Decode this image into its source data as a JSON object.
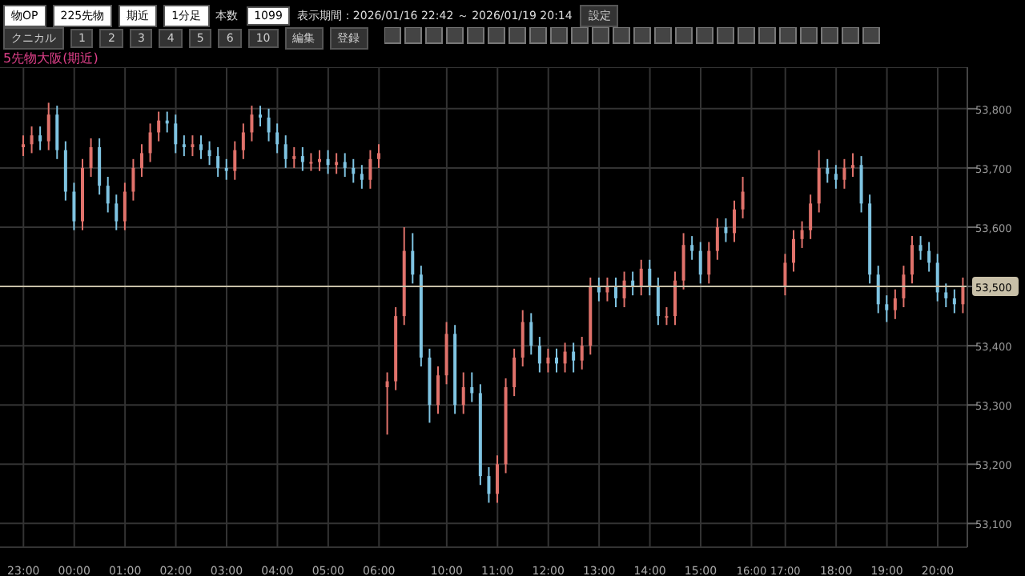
{
  "chart_data": {
    "type": "candlestick",
    "title": "5先物大阪(期近)",
    "annotations": [
      "物OP",
      "225先物",
      "期近",
      "1分足",
      "本数",
      "1099",
      "表示期間：2026/01/16 22:42 ～ 2026/01/19 20:14",
      "設定",
      "クニカル",
      "1",
      "2",
      "3",
      "4",
      "5",
      "6",
      "10",
      "編集",
      "登録"
    ],
    "categories": [
      "23:00",
      null,
      null,
      null,
      null,
      null,
      "00:00",
      null,
      null,
      null,
      null,
      null,
      "01:00",
      null,
      null,
      null,
      null,
      null,
      "02:00",
      null,
      null,
      null,
      null,
      null,
      "03:00",
      null,
      null,
      null,
      null,
      null,
      "04:00",
      null,
      null,
      null,
      null,
      null,
      "05:00",
      null,
      null,
      null,
      null,
      null,
      "06:00",
      null,
      null,
      null,
      null,
      null,
      null,
      null,
      "10:00",
      null,
      null,
      null,
      null,
      null,
      "11:00",
      null,
      null,
      null,
      null,
      null,
      "12:00",
      null,
      null,
      null,
      null,
      null,
      "13:00",
      null,
      null,
      null,
      null,
      null,
      "14:00",
      null,
      null,
      null,
      null,
      null,
      "15:00",
      null,
      null,
      null,
      null,
      null,
      "16:00",
      null,
      null,
      null,
      "17:00",
      null,
      null,
      null,
      null,
      null,
      "18:00",
      null,
      null,
      null,
      null,
      null,
      "19:00",
      null,
      null,
      null,
      null,
      null,
      "20:00",
      null,
      null,
      null
    ],
    "ohlc": [
      [
        53735,
        53755,
        53720,
        53740
      ],
      [
        53740,
        53770,
        53725,
        53755
      ],
      [
        53755,
        53770,
        53730,
        53745
      ],
      [
        53745,
        53810,
        53730,
        53790
      ],
      [
        53790,
        53805,
        53715,
        53730
      ],
      [
        53730,
        53745,
        53645,
        53660
      ],
      [
        53660,
        53675,
        53595,
        53610
      ],
      [
        53610,
        53715,
        53595,
        53700
      ],
      [
        53700,
        53750,
        53685,
        53735
      ],
      [
        53735,
        53750,
        53655,
        53670
      ],
      [
        53670,
        53685,
        53625,
        53640
      ],
      [
        53640,
        53655,
        53595,
        53610
      ],
      [
        53610,
        53675,
        53595,
        53660
      ],
      [
        53660,
        53715,
        53645,
        53700
      ],
      [
        53700,
        53740,
        53685,
        53725
      ],
      [
        53725,
        53775,
        53710,
        53760
      ],
      [
        53760,
        53795,
        53745,
        53780
      ],
      [
        53780,
        53795,
        53760,
        53775
      ],
      [
        53775,
        53790,
        53725,
        53740
      ],
      [
        53740,
        53755,
        53720,
        53735
      ],
      [
        53735,
        53755,
        53720,
        53740
      ],
      [
        53740,
        53755,
        53715,
        53730
      ],
      [
        53730,
        53745,
        53705,
        53720
      ],
      [
        53720,
        53735,
        53685,
        53700
      ],
      [
        53700,
        53715,
        53680,
        53695
      ],
      [
        53695,
        53745,
        53680,
        53730
      ],
      [
        53730,
        53775,
        53715,
        53760
      ],
      [
        53760,
        53805,
        53745,
        53790
      ],
      [
        53790,
        53805,
        53770,
        53785
      ],
      [
        53785,
        53800,
        53745,
        53760
      ],
      [
        53760,
        53775,
        53725,
        53740
      ],
      [
        53740,
        53755,
        53700,
        53715
      ],
      [
        53715,
        53735,
        53700,
        53720
      ],
      [
        53720,
        53735,
        53695,
        53710
      ],
      [
        53710,
        53725,
        53695,
        53710
      ],
      [
        53710,
        53730,
        53695,
        53715
      ],
      [
        53715,
        53730,
        53690,
        53705
      ],
      [
        53705,
        53725,
        53690,
        53710
      ],
      [
        53710,
        53725,
        53685,
        53700
      ],
      [
        53700,
        53715,
        53675,
        53690
      ],
      [
        53690,
        53705,
        53665,
        53680
      ],
      [
        53680,
        53730,
        53665,
        53715
      ],
      [
        53715,
        53740,
        53700,
        53725
      ],
      [
        53330,
        53355,
        53250,
        53340
      ],
      [
        53340,
        53465,
        53325,
        53450
      ],
      [
        53450,
        53600,
        53435,
        53560
      ],
      [
        53560,
        53590,
        53505,
        53520
      ],
      [
        53520,
        53535,
        53365,
        53380
      ],
      [
        53380,
        53395,
        53270,
        53300
      ],
      [
        53300,
        53365,
        53285,
        53350
      ],
      [
        53350,
        53440,
        53335,
        53420
      ],
      [
        53420,
        53435,
        53285,
        53300
      ],
      [
        53300,
        53355,
        53285,
        53330
      ],
      [
        53330,
        53355,
        53305,
        53320
      ],
      [
        53320,
        53335,
        53165,
        53180
      ],
      [
        53180,
        53195,
        53135,
        53150
      ],
      [
        53150,
        53215,
        53135,
        53200
      ],
      [
        53200,
        53345,
        53185,
        53330
      ],
      [
        53330,
        53395,
        53315,
        53380
      ],
      [
        53380,
        53460,
        53365,
        53440
      ],
      [
        53440,
        53455,
        53385,
        53400
      ],
      [
        53400,
        53415,
        53355,
        53370
      ],
      [
        53370,
        53395,
        53355,
        53380
      ],
      [
        53380,
        53395,
        53355,
        53370
      ],
      [
        53370,
        53405,
        53355,
        53390
      ],
      [
        53390,
        53405,
        53355,
        53375
      ],
      [
        53375,
        53415,
        53360,
        53400
      ],
      [
        53400,
        53515,
        53385,
        53500
      ],
      [
        53500,
        53515,
        53475,
        53490
      ],
      [
        53490,
        53515,
        53475,
        53500
      ],
      [
        53500,
        53515,
        53465,
        53480
      ],
      [
        53480,
        53525,
        53465,
        53510
      ],
      [
        53510,
        53525,
        53485,
        53500
      ],
      [
        53500,
        53545,
        53485,
        53530
      ],
      [
        53530,
        53545,
        53485,
        53500
      ],
      [
        53500,
        53515,
        53435,
        53450
      ],
      [
        53450,
        53465,
        53435,
        53450
      ],
      [
        53450,
        53525,
        53435,
        53510
      ],
      [
        53510,
        53590,
        53495,
        53570
      ],
      [
        53570,
        53585,
        53545,
        53560
      ],
      [
        53560,
        53575,
        53505,
        53520
      ],
      [
        53520,
        53575,
        53505,
        53560
      ],
      [
        53560,
        53615,
        53545,
        53600
      ],
      [
        53600,
        53615,
        53575,
        53590
      ],
      [
        53590,
        53645,
        53575,
        53630
      ],
      [
        53630,
        53685,
        53615,
        53660
      ],
      null,
      null,
      null,
      null,
      [
        53500,
        53555,
        53485,
        53540
      ],
      [
        53540,
        53595,
        53525,
        53580
      ],
      [
        53580,
        53610,
        53565,
        53595
      ],
      [
        53595,
        53655,
        53580,
        53640
      ],
      [
        53640,
        53730,
        53625,
        53700
      ],
      [
        53700,
        53715,
        53675,
        53690
      ],
      [
        53690,
        53705,
        53665,
        53680
      ],
      [
        53680,
        53715,
        53665,
        53700
      ],
      [
        53700,
        53725,
        53685,
        53705
      ],
      [
        53705,
        53720,
        53625,
        53640
      ],
      [
        53640,
        53655,
        53505,
        53520
      ],
      [
        53520,
        53535,
        53455,
        53470
      ],
      [
        53470,
        53485,
        53440,
        53460
      ],
      [
        53460,
        53495,
        53445,
        53480
      ],
      [
        53480,
        53535,
        53465,
        53520
      ],
      [
        53520,
        53585,
        53505,
        53570
      ],
      [
        53570,
        53585,
        53545,
        53560
      ],
      [
        53560,
        53575,
        53525,
        53540
      ],
      [
        53540,
        53555,
        53475,
        53490
      ],
      [
        53490,
        53505,
        53465,
        53480
      ],
      [
        53480,
        53495,
        53455,
        53470
      ],
      [
        53470,
        53515,
        53455,
        53500
      ]
    ],
    "colors": [
      "#e0726b",
      "#e0726b",
      "#7fc4e2",
      "#e0726b",
      "#7fc4e2",
      "#7fc4e2",
      "#7fc4e2",
      "#e0726b",
      "#e0726b",
      "#7fc4e2",
      "#7fc4e2",
      "#7fc4e2",
      "#e0726b",
      "#e0726b",
      "#e0726b",
      "#e0726b",
      "#e0726b",
      "#7fc4e2",
      "#7fc4e2",
      "#7fc4e2",
      "#e0726b",
      "#7fc4e2",
      "#7fc4e2",
      "#7fc4e2",
      "#7fc4e2",
      "#e0726b",
      "#e0726b",
      "#e0726b",
      "#7fc4e2",
      "#7fc4e2",
      "#7fc4e2",
      "#7fc4e2",
      "#e0726b",
      "#7fc4e2",
      "#e0726b",
      "#e0726b",
      "#7fc4e2",
      "#e0726b",
      "#7fc4e2",
      "#7fc4e2",
      "#7fc4e2",
      "#e0726b",
      "#e0726b",
      "#e0726b",
      "#e0726b",
      "#e0726b",
      "#7fc4e2",
      "#7fc4e2",
      "#7fc4e2",
      "#e0726b",
      "#e0726b",
      "#7fc4e2",
      "#e0726b",
      "#7fc4e2",
      "#7fc4e2",
      "#7fc4e2",
      "#e0726b",
      "#e0726b",
      "#e0726b",
      "#e0726b",
      "#7fc4e2",
      "#7fc4e2",
      "#e0726b",
      "#7fc4e2",
      "#e0726b",
      "#7fc4e2",
      "#e0726b",
      "#e0726b",
      "#7fc4e2",
      "#e0726b",
      "#7fc4e2",
      "#e0726b",
      "#7fc4e2",
      "#e0726b",
      "#7fc4e2",
      "#7fc4e2",
      "#e0726b",
      "#e0726b",
      "#e0726b",
      "#7fc4e2",
      "#7fc4e2",
      "#e0726b",
      "#e0726b",
      "#7fc4e2",
      "#e0726b",
      "#e0726b",
      null,
      null,
      null,
      null,
      "#e0726b",
      "#e0726b",
      "#e0726b",
      "#e0726b",
      "#e0726b",
      "#7fc4e2",
      "#7fc4e2",
      "#e0726b",
      "#e0726b",
      "#7fc4e2",
      "#7fc4e2",
      "#7fc4e2",
      "#7fc4e2",
      "#e0726b",
      "#e0726b",
      "#e0726b",
      "#7fc4e2",
      "#7fc4e2",
      "#7fc4e2",
      "#7fc4e2",
      "#7fc4e2",
      "#e0726b"
    ],
    "ylim": [
      53060,
      53870
    ],
    "yticks": [
      {
        "value": 53100,
        "label": "53,100"
      },
      {
        "value": 53200,
        "label": "53,200"
      },
      {
        "value": 53300,
        "label": "53,300"
      },
      {
        "value": 53400,
        "label": "53,400"
      },
      {
        "value": 53500,
        "label": "53,500"
      },
      {
        "value": 53600,
        "label": "53,600"
      },
      {
        "value": 53700,
        "label": "53,700"
      },
      {
        "value": 53800,
        "label": "53,800"
      }
    ],
    "ref_lines": [
      {
        "axis": "y",
        "value": 53500,
        "color": "#c8c0a8"
      }
    ],
    "grid": true,
    "legend": false
  }
}
